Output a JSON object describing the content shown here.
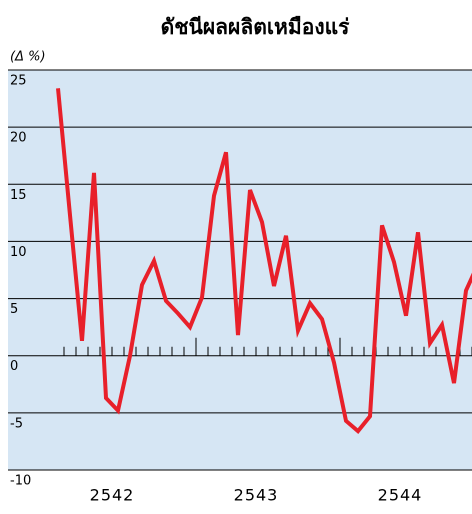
{
  "chart_data": {
    "type": "line",
    "title": "ดัชนีผลผลิตเหมืองแร่",
    "y_label": "(Δ %)",
    "categories": [
      null,
      null,
      null,
      null,
      null,
      "2542",
      null,
      null,
      null,
      null,
      null,
      null,
      null,
      null,
      null,
      null,
      null,
      "2543",
      null,
      null,
      null,
      null,
      null,
      null,
      null,
      null,
      null,
      null,
      null,
      "2544",
      null,
      null,
      null,
      null,
      null,
      null
    ],
    "series": [
      {
        "name": "ดัชนีผลผลิตเหมืองแร่",
        "color": "#e8202a",
        "values": [
          23.4,
          12.3,
          1.3,
          16,
          -3.7,
          -4.8,
          0,
          6.2,
          8.3,
          4.8,
          3.7,
          2.5,
          5.1,
          14,
          17.8,
          1.8,
          14.5,
          11.7,
          6.1,
          10.5,
          2.2,
          4.6,
          3.2,
          -0.6,
          -5.7,
          -6.6,
          -5.3,
          11.4,
          8.2,
          3.5,
          10.8,
          1.1,
          2.7,
          -2.4,
          5.7,
          8
        ]
      }
    ],
    "ylim": [
      -10,
      25
    ],
    "yticks": [
      25,
      20,
      15,
      10,
      5,
      0,
      -5,
      -10
    ],
    "grid": true
  }
}
